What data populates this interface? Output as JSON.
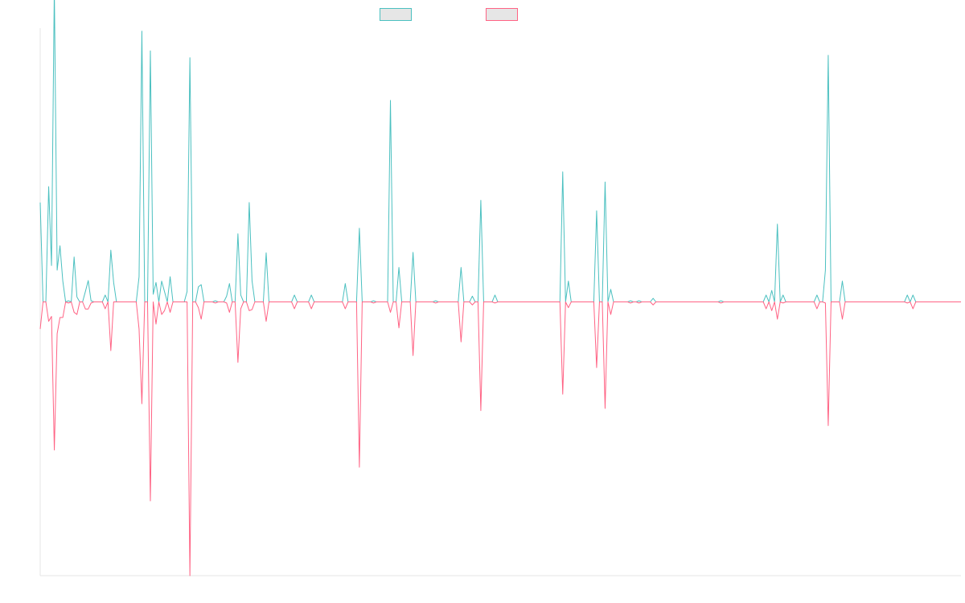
{
  "chart_data": {
    "type": "line",
    "title": "",
    "xlabel": "",
    "ylabel": "",
    "legend": {
      "position": "top",
      "show": true
    },
    "grid": false,
    "colors": {
      "series_a": "#4bc0c0",
      "series_b": "#ff6384",
      "legend_fill": "#e6e6e6",
      "axis": "#e5e5e5"
    },
    "ylim": [
      -100,
      100
    ],
    "series": [
      {
        "name": "",
        "color": "#4bc0c0",
        "values": [
          36.3,
          0,
          0,
          42.1,
          13.3,
          114.8,
          11.6,
          20.5,
          7.6,
          0,
          0.4,
          0,
          16.4,
          1.8,
          0,
          0,
          3.8,
          7.8,
          0.4,
          0,
          0,
          0,
          0,
          2.5,
          0,
          18.9,
          7.1,
          0,
          0,
          0,
          0,
          0,
          0,
          0,
          0,
          9.2,
          98.9,
          0,
          0,
          91.7,
          2.8,
          7.1,
          0,
          7.6,
          3.8,
          0,
          9.2,
          0,
          0,
          0,
          0,
          0,
          3.8,
          89.2,
          0,
          0,
          5.5,
          6.3,
          0,
          0,
          0,
          0,
          0.4,
          0,
          0,
          0,
          2.1,
          6.7,
          0,
          0,
          24.9,
          2.5,
          0,
          0,
          36.3,
          7.7,
          0,
          0,
          0,
          0,
          17.9,
          0,
          0,
          0,
          0,
          0,
          0,
          0,
          0,
          0,
          2.5,
          0,
          0,
          0,
          0,
          0,
          2.5,
          0,
          0,
          0,
          0,
          0,
          0,
          0,
          0,
          0,
          0,
          0,
          6.7,
          0,
          0,
          0,
          0,
          26.9,
          0,
          0,
          0,
          0,
          0.4,
          0,
          0,
          0,
          0,
          0,
          73.6,
          0,
          0,
          12.6,
          0,
          0,
          0,
          0,
          18.1,
          0,
          0,
          0,
          0,
          0,
          0,
          0,
          0.4,
          0,
          0,
          0,
          0,
          0,
          0,
          0,
          0,
          12.6,
          0,
          0,
          0,
          2.1,
          0,
          0,
          37.1,
          0,
          0,
          0,
          0,
          2.5,
          0,
          0,
          0,
          0,
          0,
          0,
          0,
          0,
          0,
          0,
          0,
          0,
          0,
          0,
          0,
          0,
          0,
          0,
          0,
          0,
          0,
          0,
          0,
          47.5,
          0,
          7.6,
          0,
          0,
          0,
          0,
          0,
          0,
          0,
          0,
          0,
          33.3,
          0,
          0,
          43.8,
          0,
          4.6,
          0,
          0,
          0,
          0,
          0,
          0,
          0.4,
          0,
          0,
          0.4,
          0,
          0,
          0,
          0,
          1.3,
          0,
          0,
          0,
          0,
          0,
          0,
          0,
          0,
          0,
          0,
          0,
          0,
          0,
          0,
          0,
          0,
          0,
          0,
          0,
          0,
          0,
          0,
          0,
          0.4,
          0,
          0,
          0,
          0,
          0,
          0,
          0,
          0,
          0,
          0,
          0,
          0,
          0,
          0,
          0,
          2.5,
          0,
          4.2,
          0,
          28.4,
          0,
          2.5,
          0,
          0,
          0,
          0,
          0,
          0,
          0,
          0,
          0,
          0,
          0,
          2.5,
          0,
          0,
          11.6,
          90.1,
          0,
          0,
          0,
          0,
          7.6,
          0,
          0,
          0,
          0,
          0,
          0,
          0,
          0,
          0,
          0,
          0,
          0,
          0,
          0,
          0,
          0,
          0,
          0,
          0,
          0,
          0,
          0,
          2.5,
          0,
          2.5,
          0,
          0,
          0,
          0,
          0,
          0,
          0,
          0,
          0,
          0,
          0,
          0,
          0,
          0,
          0,
          0,
          0
        ]
      },
      {
        "name": "",
        "color": "#ff6384",
        "values": [
          -9.9,
          0,
          0,
          -7.1,
          -5.3,
          -54.1,
          -11.6,
          -5.7,
          -5.7,
          0,
          -0.4,
          0,
          -3.8,
          -4.6,
          0,
          0,
          -2.6,
          -2.6,
          -0.4,
          0,
          0,
          0,
          0,
          -2.5,
          0,
          -17.8,
          0,
          0,
          0,
          0,
          0,
          0,
          0,
          0,
          0,
          -9.9,
          -37.2,
          0,
          0,
          -72.7,
          0,
          -8.1,
          0,
          -4.6,
          -3.2,
          0,
          -3.8,
          0,
          0,
          0,
          0,
          0,
          0,
          -100,
          0,
          0,
          -2.1,
          -6.3,
          0,
          0,
          0,
          0,
          -0.4,
          0,
          0,
          0,
          -0.4,
          -3.8,
          0,
          0,
          -22.1,
          -2.5,
          0,
          0,
          -3.2,
          -2.8,
          0,
          0,
          0,
          0,
          -7.1,
          0,
          0,
          0,
          0,
          0,
          0,
          0,
          0,
          0,
          -2.5,
          0,
          0,
          0,
          0,
          0,
          -2.5,
          0,
          0,
          0,
          0,
          0,
          0,
          0,
          0,
          0,
          0,
          0,
          -2.5,
          0,
          0,
          0,
          0,
          -60.4,
          0,
          0,
          0,
          0,
          -0.4,
          0,
          0,
          0,
          0,
          0,
          -3.8,
          0,
          0,
          -9.5,
          0,
          0,
          0,
          0,
          -19.6,
          0,
          0,
          0,
          0,
          0,
          0,
          0,
          -0.4,
          0,
          0,
          0,
          0,
          0,
          0,
          0,
          0,
          -14.6,
          0,
          0,
          0,
          -1.1,
          0,
          0,
          -39.7,
          0,
          0,
          0,
          0,
          -0.4,
          0,
          0,
          0,
          0,
          0,
          0,
          0,
          0,
          0,
          0,
          0,
          0,
          0,
          0,
          0,
          0,
          0,
          0,
          0,
          0,
          0,
          0,
          0,
          -33.7,
          0,
          -2.1,
          0,
          0,
          0,
          0,
          0,
          0,
          0,
          0,
          0,
          -24,
          0,
          0,
          -38.9,
          0,
          -4.6,
          0,
          0,
          0,
          0,
          0,
          0,
          -0.4,
          0,
          0,
          -0.4,
          0,
          0,
          0,
          0,
          -1.1,
          0,
          0,
          0,
          0,
          0,
          0,
          0,
          0,
          0,
          0,
          0,
          0,
          0,
          0,
          0,
          0,
          0,
          0,
          0,
          0,
          0,
          0,
          0,
          -0.4,
          0,
          0,
          0,
          0,
          0,
          0,
          0,
          0,
          0,
          0,
          0,
          0,
          0,
          0,
          0,
          -2.5,
          0,
          -3.2,
          0,
          -6.3,
          0,
          -0.4,
          0,
          0,
          0,
          0,
          0,
          0,
          0,
          0,
          0,
          0,
          0,
          -2.5,
          0,
          0,
          -0.4,
          -45.2,
          0,
          0,
          0,
          0,
          -6.3,
          0,
          0,
          0,
          0,
          0,
          0,
          0,
          0,
          0,
          0,
          0,
          0,
          0,
          0,
          0,
          0,
          0,
          0,
          0,
          0,
          0,
          0,
          -0.4,
          0,
          -2.5,
          0,
          0,
          0,
          0,
          0,
          0,
          0,
          0,
          0,
          0,
          0,
          0,
          0,
          0,
          0,
          0,
          0
        ]
      }
    ]
  }
}
